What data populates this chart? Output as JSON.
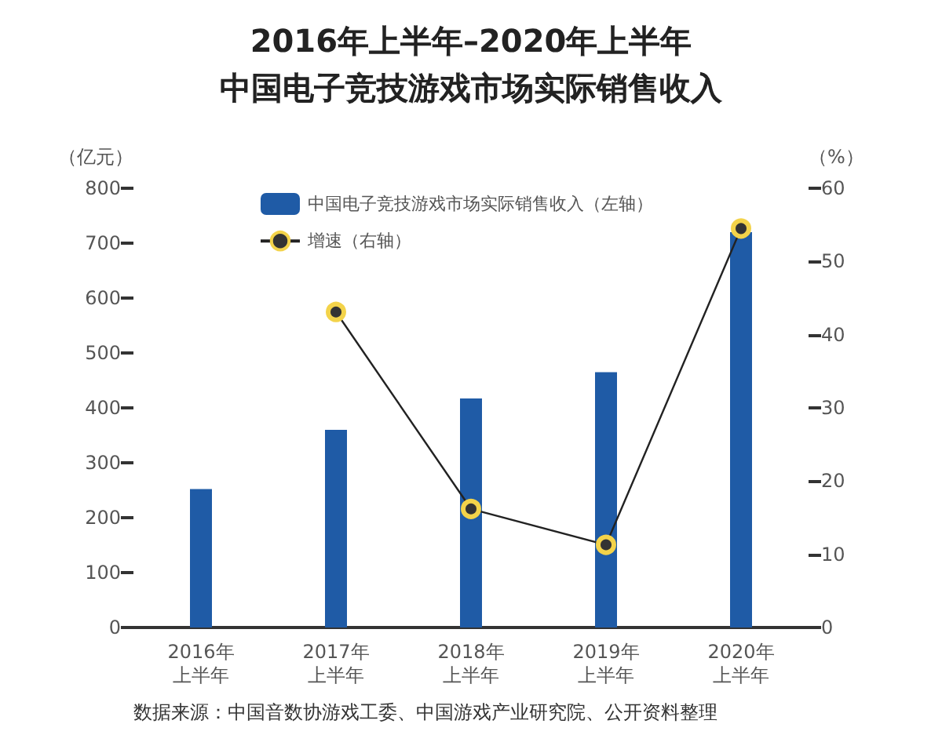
{
  "chart_data": {
    "type": "bar",
    "title": "2016年上半年–2020年上半年",
    "subtitle": "中国电子竞技游戏市场实际销售收入",
    "categories": [
      "2016年上半年",
      "2017年上半年",
      "2018年上半年",
      "2019年上半年",
      "2020年上半年"
    ],
    "series": [
      {
        "name": "中国电子竞技游戏市场实际销售收入（左轴）",
        "color": "#1f5ba6",
        "values": [
          252,
          360,
          417,
          465,
          720
        ]
      },
      {
        "name": "增速（右轴）",
        "type": "line",
        "axis": "y2",
        "color": "#222222",
        "marker": "circle",
        "values": [
          null,
          43.1,
          16.2,
          11.3,
          54.5
        ]
      }
    ],
    "ylabel": "（亿元）",
    "y2label": "（%）",
    "ylim": [
      0,
      800
    ],
    "yticks": [
      0,
      100,
      200,
      300,
      400,
      500,
      600,
      700,
      800
    ],
    "y2lim": [
      0,
      60
    ],
    "y2ticks": [
      0,
      10,
      20,
      30,
      40,
      50,
      60
    ],
    "grid": false,
    "legend": "top left",
    "annotations": [
      "数据来源：中国音数协游戏工委、中国游戏产业研究院、公开资料整理"
    ]
  }
}
